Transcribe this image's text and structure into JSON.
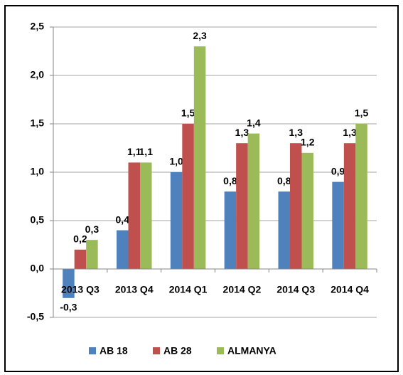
{
  "chart_data": {
    "type": "bar",
    "categories": [
      "2013 Q3",
      "2013 Q4",
      "2014 Q1",
      "2014 Q2",
      "2014 Q3",
      "2014 Q4"
    ],
    "series": [
      {
        "name": "AB 18",
        "color": "#4f81bd",
        "values": [
          -0.3,
          0.4,
          1.0,
          0.8,
          0.8,
          0.9
        ],
        "value_labels": [
          "-0,3",
          "0,4",
          "1,0",
          "0,8",
          "0,8",
          "0,9"
        ]
      },
      {
        "name": "AB 28",
        "color": "#c0504d",
        "values": [
          0.2,
          1.1,
          1.5,
          1.3,
          1.3,
          1.3
        ],
        "value_labels": [
          "0,2",
          "1,1",
          "1,5",
          "1,3",
          "1,3",
          "1,3"
        ]
      },
      {
        "name": "ALMANYA",
        "color": "#9bbb59",
        "values": [
          0.3,
          1.1,
          2.3,
          1.4,
          1.2,
          1.5
        ],
        "value_labels": [
          "0,3",
          "1,1",
          "2,3",
          "1,4",
          "1,2",
          "1,5"
        ]
      }
    ],
    "ylim": [
      -0.5,
      2.5
    ],
    "yticks": [
      {
        "value": -0.5,
        "label": "-0,5"
      },
      {
        "value": 0,
        "label": "0,0"
      },
      {
        "value": 0.5,
        "label": "0,5"
      },
      {
        "value": 1,
        "label": "1,0"
      },
      {
        "value": 1.5,
        "label": "1,5"
      },
      {
        "value": 2,
        "label": "2,0"
      },
      {
        "value": 2.5,
        "label": "2,5"
      }
    ],
    "grid": true,
    "legend": "bottom"
  }
}
